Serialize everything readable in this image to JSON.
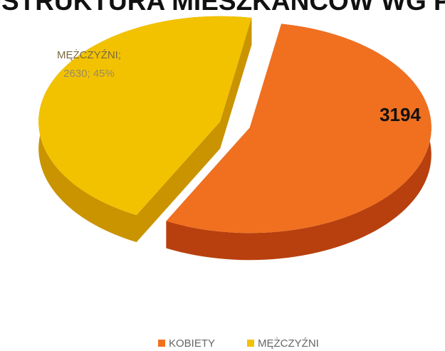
{
  "chart_data": {
    "type": "pie3d",
    "title": "STRUKTURA MIESZKAŃCÓW WG P",
    "categories": [
      "KOBIETY",
      "MĘŻCZYŹNI"
    ],
    "values": [
      3194,
      2630
    ],
    "value_labels": [
      [
        "3194"
      ],
      [
        "MĘŻCZYŹNI;",
        "2630; 45%"
      ]
    ],
    "colors": [
      "#f07020",
      "#f2c200"
    ],
    "side_colors": [
      "#b8400e",
      "#c99400"
    ],
    "legend": "bottom"
  }
}
